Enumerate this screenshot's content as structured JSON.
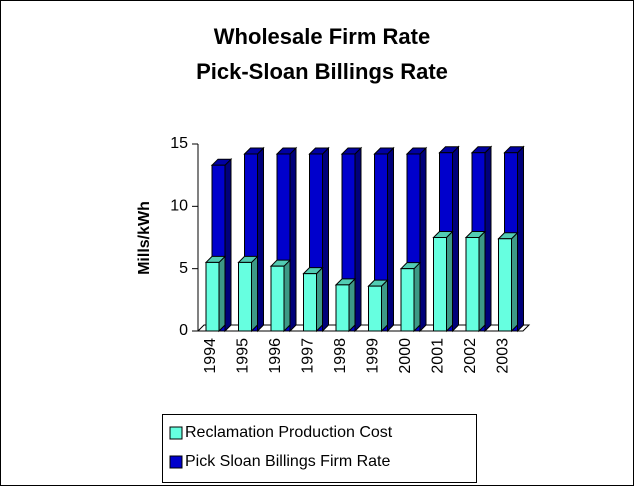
{
  "chart_data": {
    "type": "bar",
    "title": "Wholesale Firm Rate",
    "subtitle": "Pick-Sloan Billings Rate",
    "y_label": "Mills/kWh",
    "categories": [
      "1994",
      "1995",
      "1996",
      "1997",
      "1998",
      "1999",
      "2000",
      "2001",
      "2002",
      "2003"
    ],
    "series": [
      {
        "name": "Reclamation Production Cost",
        "color": "#66ffe0",
        "values": [
          5.5,
          5.5,
          5.2,
          4.6,
          3.7,
          3.6,
          5.0,
          7.5,
          7.5,
          7.4
        ]
      },
      {
        "name": "Pick Sloan Billings Firm Rate",
        "color": "#0000cc",
        "values": [
          13.3,
          14.2,
          14.2,
          14.2,
          14.2,
          14.2,
          14.2,
          14.3,
          14.3,
          14.3
        ]
      }
    ],
    "ylim": [
      0,
      15
    ],
    "yticks": [
      0,
      5,
      10,
      15
    ]
  }
}
